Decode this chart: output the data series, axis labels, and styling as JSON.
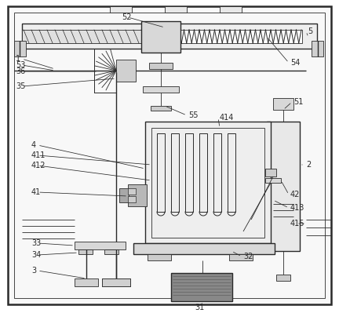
{
  "bg": "#ffffff",
  "lc": "#2a2a2a",
  "fc_light": "#f0f0f0",
  "fc_mid": "#d8d8d8",
  "fc_dark": "#a0a0a0",
  "fc_hatch": "#e0e0e0"
}
